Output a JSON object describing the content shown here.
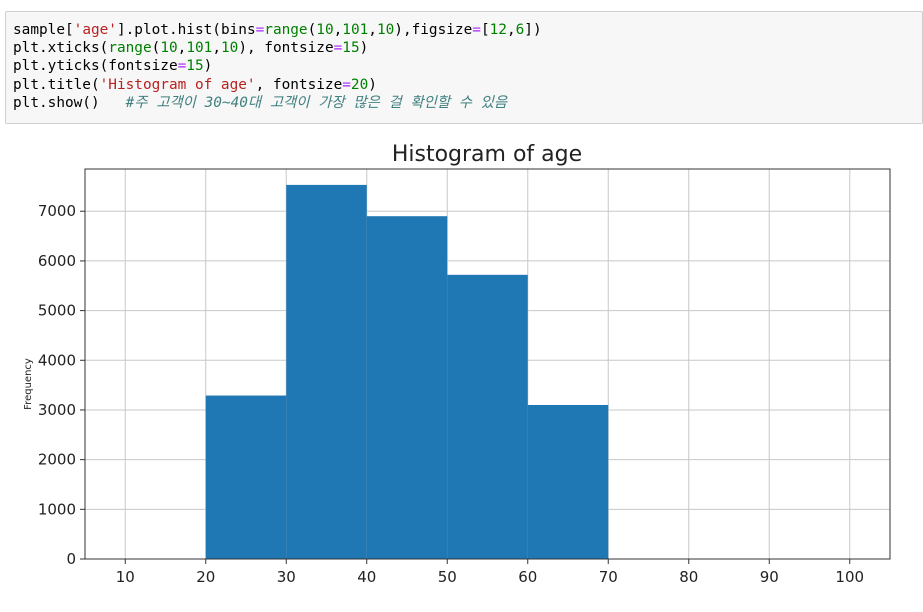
{
  "code": {
    "line1": [
      "sample[",
      "'age'",
      "].plot.hist(bins",
      "=",
      "range",
      "(",
      "10",
      ",",
      "101",
      ",",
      "10",
      "),figsize",
      "=",
      "[",
      "12",
      ",",
      "6",
      "])"
    ],
    "line2": [
      "plt.xticks(",
      "range",
      "(",
      "10",
      ",",
      "101",
      ",",
      "10",
      "), fontsize",
      "=",
      "15",
      ")"
    ],
    "line3": [
      "plt.yticks(fontsize",
      "=",
      "15",
      ")"
    ],
    "line4": [
      "plt.title(",
      "'Histogram of age'",
      ", fontsize",
      "=",
      "20",
      ")"
    ],
    "line5_code": "plt.show()   ",
    "line5_comment": "#주 고객이 30~40대 고객이 가장 많은 걸 확인할 수 있음"
  },
  "chart_data": {
    "type": "bar",
    "title": "Histogram of age",
    "xlabel": "",
    "ylabel": "Frequency",
    "bin_edges": [
      20,
      30,
      40,
      50,
      60,
      70
    ],
    "values": [
      3290,
      7530,
      6900,
      5720,
      3100
    ],
    "xlim": [
      5,
      105
    ],
    "ylim": [
      0,
      7850
    ],
    "xticks": [
      10,
      20,
      30,
      40,
      50,
      60,
      70,
      80,
      90,
      100
    ],
    "yticks": [
      0,
      1000,
      2000,
      3000,
      4000,
      5000,
      6000,
      7000
    ],
    "grid": true,
    "bar_color": "#1f77b4"
  }
}
